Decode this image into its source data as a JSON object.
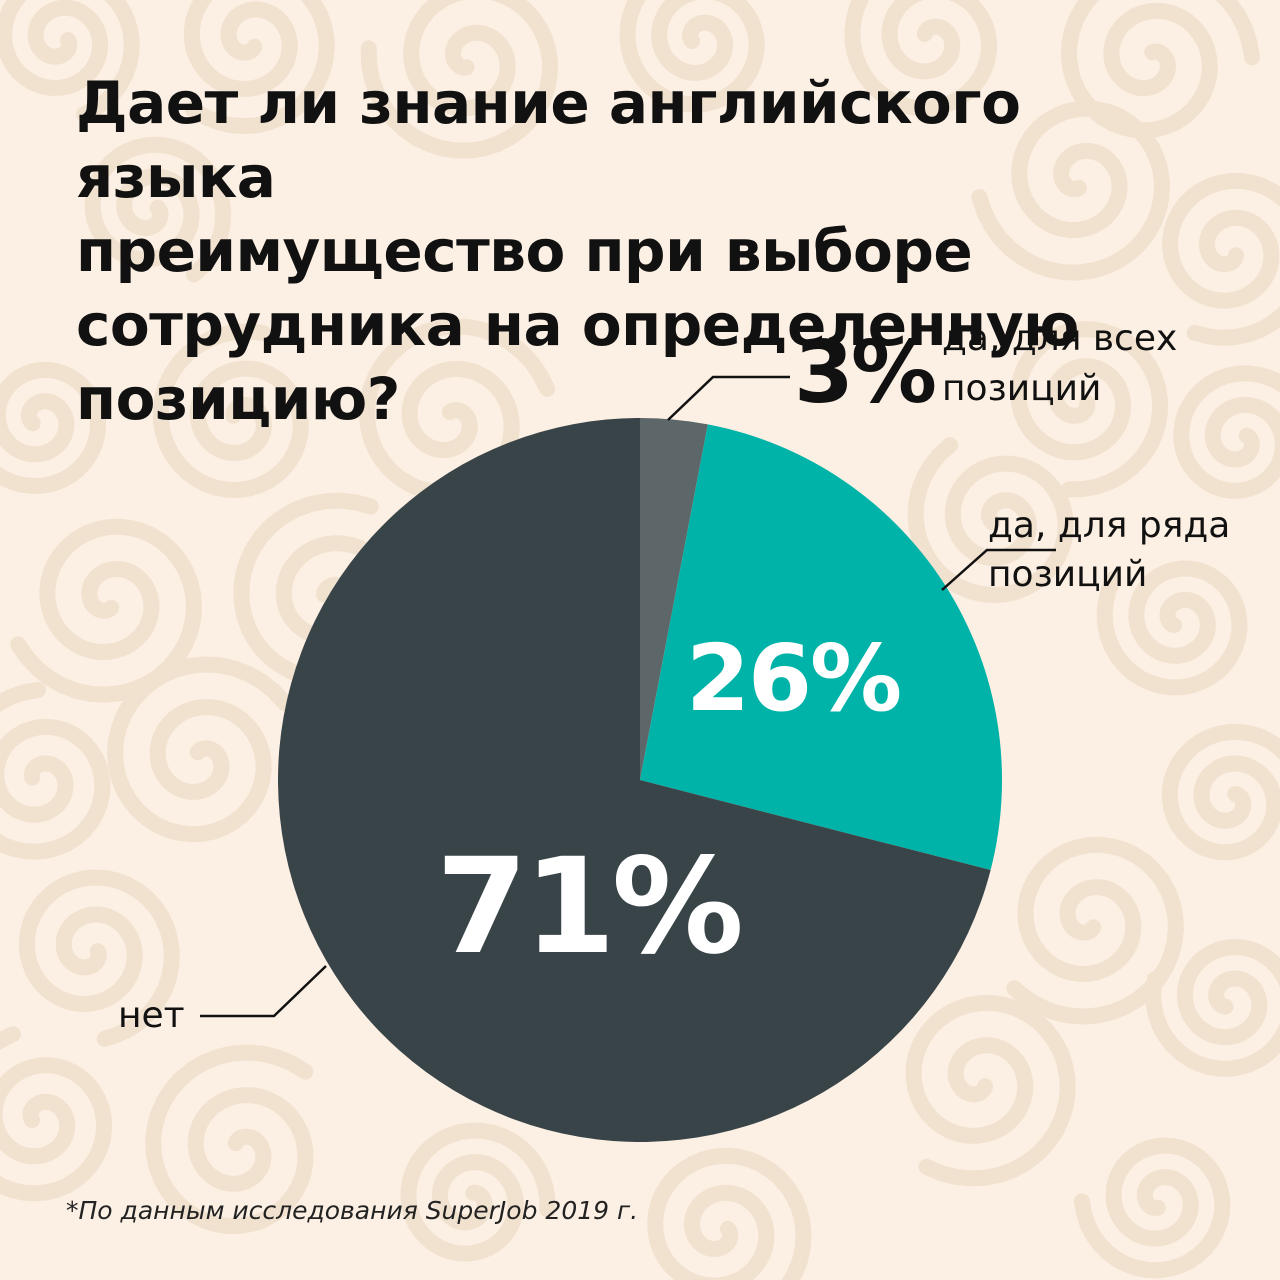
{
  "title_lines": [
    "Дает ли знание английского языка",
    "преимущество при выборе",
    "сотрудника на определенную",
    "позицию?"
  ],
  "footnote": "*По данным исследования SuperJob 2019 г.",
  "colors": {
    "background": "#fcf0e4",
    "swirl": "#f1e1cf",
    "leader_line": "#111111"
  },
  "chart_data": {
    "type": "pie",
    "title": "Дает ли знание английского языка преимущество при выборе сотрудника на определенную позицию?",
    "slices": [
      {
        "label_lines": [
          "да, для всех",
          "позиций"
        ],
        "value": 3,
        "value_label": "3%",
        "color": "#5d6668"
      },
      {
        "label_lines": [
          "да, для ряда",
          "позиций"
        ],
        "value": 26,
        "value_label": "26%",
        "color": "#00b3a8"
      },
      {
        "label_lines": [
          "нет"
        ],
        "value": 71,
        "value_label": "71%",
        "color": "#394449"
      }
    ]
  }
}
